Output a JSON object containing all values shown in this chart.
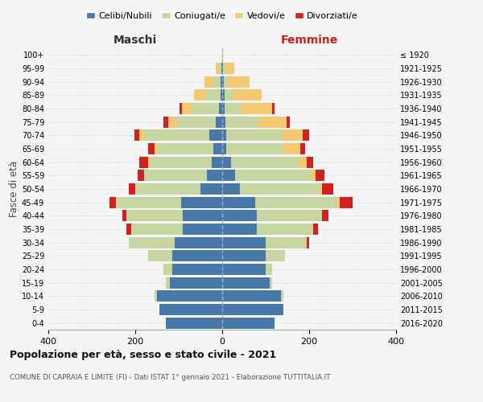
{
  "age_groups": [
    "0-4",
    "5-9",
    "10-14",
    "15-19",
    "20-24",
    "25-29",
    "30-34",
    "35-39",
    "40-44",
    "45-49",
    "50-54",
    "55-59",
    "60-64",
    "65-69",
    "70-74",
    "75-79",
    "80-84",
    "85-89",
    "90-94",
    "95-99",
    "100+"
  ],
  "birth_years": [
    "2016-2020",
    "2011-2015",
    "2006-2010",
    "2001-2005",
    "1996-2000",
    "1991-1995",
    "1986-1990",
    "1981-1985",
    "1976-1980",
    "1971-1975",
    "1966-1970",
    "1961-1965",
    "1956-1960",
    "1951-1955",
    "1946-1950",
    "1941-1945",
    "1936-1940",
    "1931-1935",
    "1926-1930",
    "1921-1925",
    "≤ 1920"
  ],
  "colors": {
    "celibi": "#4878a8",
    "coniugati": "#c5d6a0",
    "vedovi": "#f5c872",
    "divorziati": "#d42020"
  },
  "maschi": {
    "celibi": [
      130,
      145,
      150,
      120,
      115,
      115,
      110,
      90,
      90,
      95,
      50,
      35,
      25,
      20,
      30,
      15,
      8,
      4,
      3,
      2,
      0
    ],
    "coniugati": [
      0,
      0,
      5,
      10,
      20,
      55,
      105,
      120,
      130,
      150,
      150,
      145,
      140,
      130,
      150,
      90,
      60,
      35,
      18,
      5,
      0
    ],
    "vedovi": [
      0,
      0,
      0,
      0,
      0,
      0,
      0,
      0,
      0,
      0,
      0,
      0,
      5,
      5,
      10,
      20,
      25,
      25,
      20,
      8,
      0
    ],
    "divorziati": [
      0,
      0,
      0,
      0,
      0,
      0,
      0,
      10,
      10,
      15,
      15,
      15,
      20,
      15,
      12,
      10,
      5,
      0,
      0,
      0,
      0
    ]
  },
  "femmine": {
    "celibi": [
      120,
      140,
      135,
      110,
      100,
      100,
      100,
      80,
      80,
      75,
      40,
      30,
      20,
      10,
      10,
      8,
      5,
      5,
      3,
      2,
      0
    ],
    "coniugati": [
      0,
      0,
      5,
      5,
      15,
      45,
      95,
      130,
      150,
      190,
      185,
      175,
      155,
      130,
      130,
      75,
      40,
      20,
      10,
      5,
      0
    ],
    "vedovi": [
      0,
      0,
      0,
      0,
      0,
      0,
      0,
      0,
      0,
      5,
      5,
      10,
      20,
      40,
      45,
      65,
      70,
      65,
      50,
      20,
      2
    ],
    "divorziati": [
      0,
      0,
      0,
      0,
      0,
      0,
      5,
      10,
      15,
      30,
      25,
      20,
      15,
      10,
      15,
      8,
      5,
      0,
      0,
      0,
      0
    ]
  },
  "title": "Popolazione per età, sesso e stato civile - 2021",
  "subtitle": "COMUNE DI CAPRAIA E LIMITE (FI) - Dati ISTAT 1° gennaio 2021 - Elaborazione TUTTITALIA.IT",
  "xlabel_left": "Maschi",
  "xlabel_right": "Femmine",
  "ylabel": "Fasce di età",
  "xlim": 400,
  "bg_color": "#f5f5f5",
  "grid_color": "#dddddd",
  "legend_labels": [
    "Celibi/Nubili",
    "Coniugati/e",
    "Vedovi/e",
    "Divorziati/e"
  ]
}
